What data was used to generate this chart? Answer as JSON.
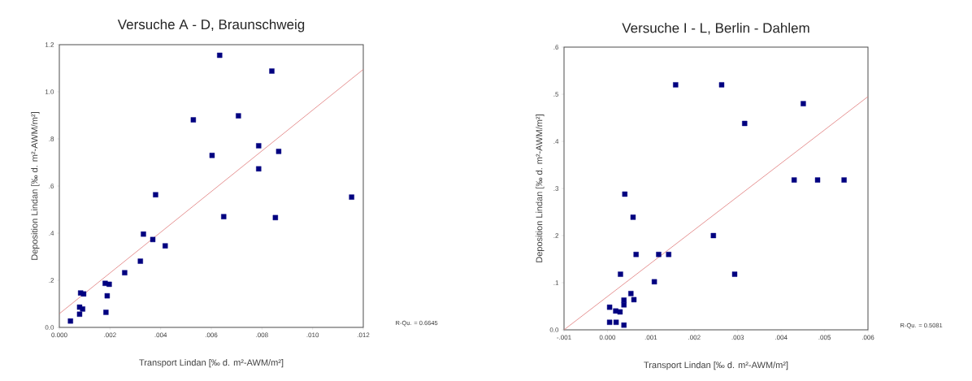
{
  "chart_data": [
    {
      "type": "scatter",
      "title": "Versuche A - D, Braunschweig",
      "xlabel": "Transport Lindan [‰ d. m²-AWM/m²]",
      "ylabel": "Deposition Lindan [‰ d. m²-AWM/m²]",
      "annotations": [
        "R-Qu. = 0.6645"
      ],
      "marker": "square",
      "xlim": [
        0,
        0.012
      ],
      "ylim": [
        0,
        1.2
      ],
      "xticks": [
        {
          "value": 0,
          "label": "0.000"
        },
        {
          "value": 0.002,
          "label": ".002"
        },
        {
          "value": 0.004,
          "label": ".004"
        },
        {
          "value": 0.006,
          "label": ".006"
        },
        {
          "value": 0.008,
          "label": ".008"
        },
        {
          "value": 0.01,
          "label": ".010"
        },
        {
          "value": 0.012,
          "label": ".012"
        }
      ],
      "yticks": [
        {
          "value": 0,
          "label": "0.0"
        },
        {
          "value": 0.2,
          "label": ".2"
        },
        {
          "value": 0.4,
          "label": ".4"
        },
        {
          "value": 0.6,
          "label": ".6"
        },
        {
          "value": 0.8,
          "label": ".8"
        },
        {
          "value": 1.0,
          "label": "1.0"
        },
        {
          "value": 1.2,
          "label": "1.2"
        }
      ],
      "series": [
        {
          "color": "#000080",
          "x": [
            0.00044,
            0.0008,
            0.0008,
            0.00092,
            0.00084,
            0.00096,
            0.00184,
            0.00189,
            0.00181,
            0.00197,
            0.00258,
            0.0032,
            0.00332,
            0.00369,
            0.00418,
            0.0038,
            0.00529,
            0.00603,
            0.00633,
            0.00649,
            0.00707,
            0.00787,
            0.00787,
            0.00839,
            0.00866,
            0.00853,
            0.01154
          ],
          "values": [
            0.027,
            0.056,
            0.086,
            0.078,
            0.146,
            0.142,
            0.064,
            0.134,
            0.187,
            0.183,
            0.232,
            0.281,
            0.396,
            0.373,
            0.346,
            0.563,
            0.881,
            0.73,
            1.155,
            0.47,
            0.898,
            0.771,
            0.673,
            1.088,
            0.747,
            0.466,
            0.553
          ]
        },
        {
          "type": "line",
          "marker": "none",
          "color": "#e07878",
          "x": [
            0,
            0.012
          ],
          "values": [
            0.058,
            1.095
          ]
        }
      ]
    },
    {
      "type": "scatter",
      "title": "Versuche I - L, Berlin - Dahlem",
      "xlabel": "Transport Lindan [‰ d. m²-AWM/m²]",
      "ylabel": "Deposition Lindan [‰ d. m²-AWM/m²]",
      "annotations": [
        "R-Qu. = 0.5081"
      ],
      "marker": "square",
      "xlim": [
        -0.001,
        0.006
      ],
      "ylim": [
        0,
        0.6
      ],
      "xticks": [
        {
          "value": -0.001,
          "label": "-.001"
        },
        {
          "value": 0,
          "label": "0.000"
        },
        {
          "value": 0.001,
          "label": ".001"
        },
        {
          "value": 0.002,
          "label": ".002"
        },
        {
          "value": 0.003,
          "label": ".003"
        },
        {
          "value": 0.004,
          "label": ".004"
        },
        {
          "value": 0.005,
          "label": ".005"
        },
        {
          "value": 0.006,
          "label": ".006"
        }
      ],
      "yticks": [
        {
          "value": 0,
          "label": "0.0"
        },
        {
          "value": 0.1,
          "label": ".1"
        },
        {
          "value": 0.2,
          "label": ".2"
        },
        {
          "value": 0.3,
          "label": ".3"
        },
        {
          "value": 0.4,
          "label": ".4"
        },
        {
          "value": 0.5,
          "label": ".5"
        },
        {
          "value": 0.6,
          "label": ".6"
        }
      ],
      "series": [
        {
          "color": "#000080",
          "x": [
            0.00157,
            0.00263,
            0.00451,
            0.00316,
            0.0043,
            0.00484,
            0.00545,
            0.0004,
            0.00059,
            0.00244,
            0.00066,
            0.00118,
            0.00141,
            0.0003,
            0.00293,
            0.00108,
            0.00054,
            0.00061,
            0.00038,
            0.00038,
            5e-05,
            0.00029,
            0.00019,
            5e-05,
            0.0002,
            0.00038
          ],
          "values": [
            0.52,
            0.52,
            0.48,
            0.438,
            0.318,
            0.318,
            0.318,
            0.288,
            0.239,
            0.2,
            0.16,
            0.16,
            0.16,
            0.118,
            0.118,
            0.102,
            0.077,
            0.064,
            0.063,
            0.053,
            0.048,
            0.038,
            0.04,
            0.016,
            0.016,
            0.01
          ]
        },
        {
          "type": "line",
          "marker": "none",
          "color": "#e07878",
          "x": [
            -0.001,
            0.006
          ],
          "values": [
            0.0,
            0.495
          ]
        }
      ]
    }
  ]
}
